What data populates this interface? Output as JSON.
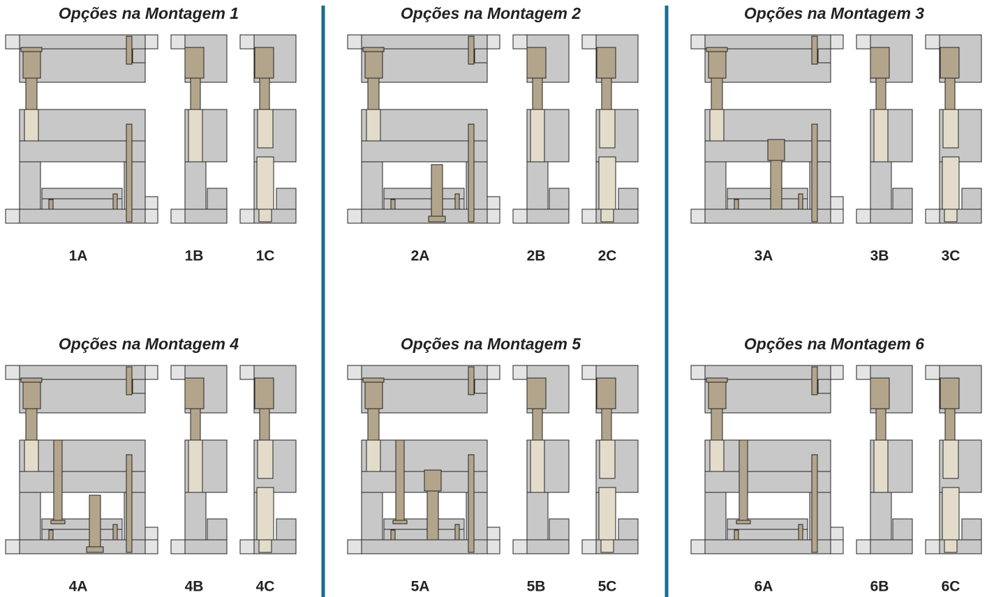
{
  "panels": [
    {
      "title": "Opções na Montagem 1",
      "labels": [
        "1A",
        "1B",
        "1C"
      ]
    },
    {
      "title": "Opções na Montagem 2",
      "labels": [
        "2A",
        "2B",
        "2C"
      ]
    },
    {
      "title": "Opções na Montagem 3",
      "labels": [
        "3A",
        "3B",
        "3C"
      ]
    },
    {
      "title": "Opções na Montagem 4",
      "labels": [
        "4A",
        "4B",
        "4C"
      ]
    },
    {
      "title": "Opções na Montagem 5",
      "labels": [
        "5A",
        "5B",
        "5C"
      ]
    },
    {
      "title": "Opções na Montagem 6",
      "labels": [
        "6A",
        "6B",
        "6C"
      ]
    }
  ]
}
